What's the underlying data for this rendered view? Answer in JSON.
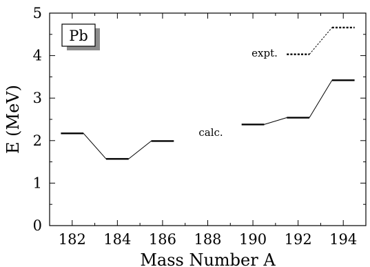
{
  "chart_data": {
    "type": "line",
    "xlabel": "Mass Number A",
    "ylabel": "E (MeV)",
    "xlim": [
      181,
      195
    ],
    "ylim": [
      0,
      5
    ],
    "x_ticks": [
      182,
      184,
      186,
      188,
      190,
      192,
      194
    ],
    "y_ticks": [
      0,
      1,
      2,
      3,
      4,
      5
    ],
    "grid": false,
    "label_box": "Pb",
    "series": [
      {
        "name": "calc.",
        "style": "solid",
        "color": "#000000",
        "levels": [
          {
            "x": 182,
            "y": 2.17
          },
          {
            "x": 184,
            "y": 1.57
          },
          {
            "x": 186,
            "y": 1.99
          },
          {
            "x": 190,
            "y": 2.38
          },
          {
            "x": 192,
            "y": 2.54
          },
          {
            "x": 194,
            "y": 3.42
          }
        ],
        "connected_ranges": [
          [
            0,
            2
          ],
          [
            3,
            5
          ]
        ]
      },
      {
        "name": "expt.",
        "style": "dotted",
        "color": "#000000",
        "levels": [
          {
            "x": 192,
            "y": 4.03
          },
          {
            "x": 194,
            "y": 4.66
          }
        ],
        "connected_ranges": [
          [
            0,
            1
          ]
        ]
      }
    ]
  }
}
